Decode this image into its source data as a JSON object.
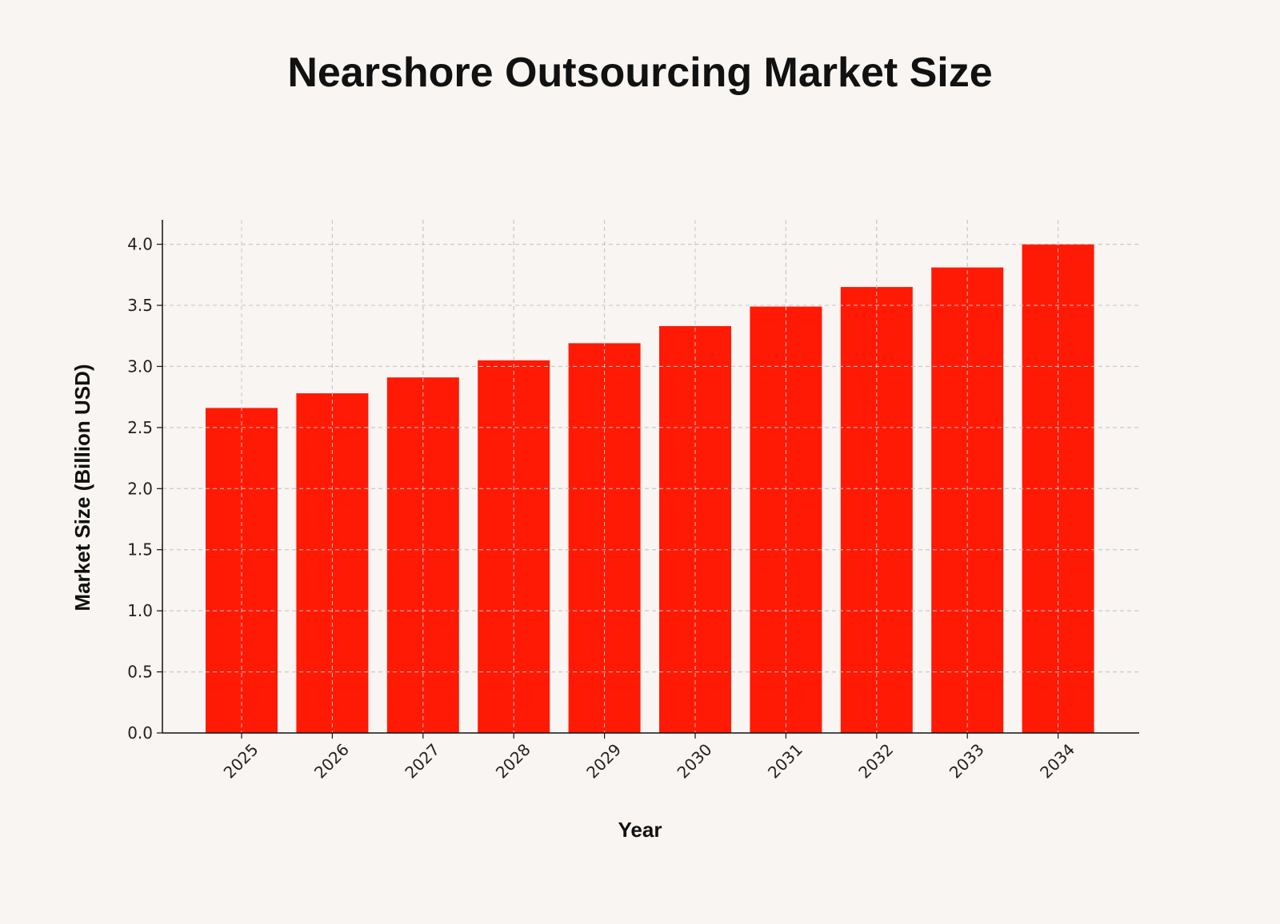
{
  "chart_data": {
    "type": "bar",
    "title": "Nearshore Outsourcing Market Size",
    "xlabel": "Year",
    "ylabel": "Market Size (Billion USD)",
    "categories": [
      "2025",
      "2026",
      "2027",
      "2028",
      "2029",
      "2030",
      "2031",
      "2032",
      "2033",
      "2034"
    ],
    "values": [
      2.66,
      2.78,
      2.91,
      3.05,
      3.19,
      3.33,
      3.49,
      3.65,
      3.81,
      4.0
    ],
    "ylim": [
      0,
      4.2
    ],
    "yticks": [
      "0.0",
      "0.5",
      "1.0",
      "1.5",
      "2.0",
      "2.5",
      "3.0",
      "3.5",
      "4.0"
    ],
    "grid": true,
    "bar_color": "#ff1a05"
  }
}
